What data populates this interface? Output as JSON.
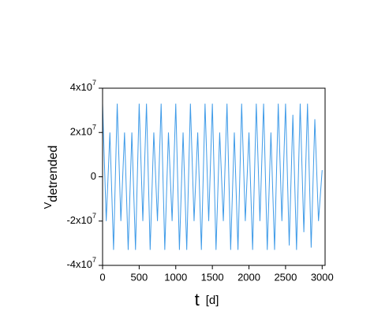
{
  "chart_data": {
    "type": "line",
    "y_label": {
      "main": "V",
      "subscript": "detrended"
    },
    "x_label": {
      "main": "t",
      "unit": "[d]"
    },
    "x": [
      0,
      50,
      100,
      150,
      200,
      250,
      300,
      350,
      400,
      450,
      500,
      550,
      600,
      650,
      700,
      750,
      800,
      850,
      900,
      950,
      1000,
      1050,
      1100,
      1150,
      1200,
      1250,
      1300,
      1350,
      1400,
      1450,
      1500,
      1550,
      1600,
      1650,
      1700,
      1750,
      1800,
      1850,
      1900,
      1950,
      2000,
      2050,
      2100,
      2150,
      2200,
      2250,
      2300,
      2350,
      2400,
      2450,
      2500,
      2550,
      2600,
      2650,
      2700,
      2750,
      2800,
      2850,
      2900,
      2950,
      3000
    ],
    "series": [
      {
        "color": "#3f9be8",
        "values": [
          33000000.0,
          -20000000.0,
          20000000.0,
          -33000000.0,
          33000000.0,
          -20000000.0,
          20000000.0,
          -33000000.0,
          20000000.0,
          -33000000.0,
          33000000.0,
          -20000000.0,
          33000000.0,
          -33000000.0,
          20000000.0,
          -20000000.0,
          33000000.0,
          -33000000.0,
          20000000.0,
          -20000000.0,
          33000000.0,
          -33000000.0,
          20000000.0,
          -33000000.0,
          33000000.0,
          -20000000.0,
          20000000.0,
          -33000000.0,
          33000000.0,
          -20000000.0,
          33000000.0,
          -33000000.0,
          20000000.0,
          -20000000.0,
          33000000.0,
          -33000000.0,
          20000000.0,
          -33000000.0,
          33000000.0,
          -20000000.0,
          20000000.0,
          -33000000.0,
          33000000.0,
          -20000000.0,
          33000000.0,
          -33000000.0,
          20000000.0,
          -33000000.0,
          33000000.0,
          -20000000.0,
          33000000.0,
          -31000000.0,
          28000000.0,
          -33000000.0,
          33000000.0,
          -25000000.0,
          33000000.0,
          -32000000.0,
          26000000.0,
          -20000000.0,
          3000000.0
        ]
      }
    ],
    "xlim": [
      0,
      3040
    ],
    "xticks": [
      0,
      500,
      1000,
      1500,
      2000,
      2500,
      3000
    ],
    "ylim": [
      -40000000,
      40000000
    ],
    "yticks": [
      {
        "value": -40000000,
        "label": "-4x10",
        "exponent": "7"
      },
      {
        "value": -20000000,
        "label": "-2x10",
        "exponent": "7"
      },
      0,
      {
        "value": 20000000,
        "label": "2x10",
        "exponent": "7"
      },
      {
        "value": 40000000,
        "label": "4x10",
        "exponent": "7"
      }
    ]
  }
}
